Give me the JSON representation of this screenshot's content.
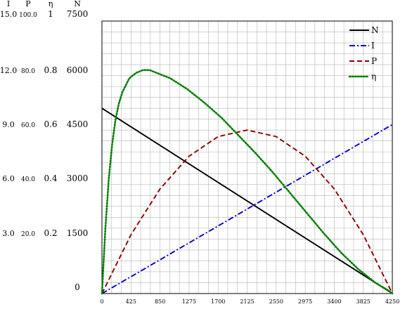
{
  "chart_data": {
    "type": "line",
    "xlabel": "",
    "xlim": [
      0,
      4250
    ],
    "x_ticks": [
      "0",
      "425",
      "850",
      "1275",
      "1700",
      "2125",
      "2550",
      "2975",
      "3400",
      "3825",
      "4250"
    ],
    "grid": true,
    "legend_position": "top-right",
    "axes": [
      {
        "key": "I",
        "header": "I",
        "range": [
          0,
          15
        ],
        "ticks": [
          "15.0",
          "12.0",
          "9.0",
          "6.0",
          "3.0"
        ]
      },
      {
        "key": "P",
        "header": "P",
        "range": [
          0,
          100
        ],
        "ticks": [
          "100.0",
          "80.0",
          "60.0",
          "40.0",
          "20.0"
        ]
      },
      {
        "key": "eta",
        "header": "η",
        "range": [
          0,
          1
        ],
        "ticks": [
          "1",
          "0.8",
          "0.6",
          "0.4",
          "0.2"
        ]
      },
      {
        "key": "N",
        "header": "N",
        "range": [
          0,
          7500
        ],
        "ticks": [
          "7500",
          "6000",
          "4500",
          "3000",
          "1500",
          "0"
        ]
      }
    ],
    "series": [
      {
        "name": "N",
        "axis": "N",
        "color": "#000000",
        "dash": "solid",
        "x": [
          0,
          4250
        ],
        "y": [
          5100,
          0
        ]
      },
      {
        "name": "I",
        "axis": "I",
        "color": "#0000cc",
        "dash": "dashdot",
        "x": [
          0,
          4250
        ],
        "y": [
          0,
          9.3
        ]
      },
      {
        "name": "P",
        "axis": "P",
        "color": "#8b0000",
        "dash": "dashed",
        "x": [
          0,
          425,
          850,
          1275,
          1700,
          2125,
          2550,
          2975,
          3400,
          3825,
          4250
        ],
        "y": [
          0,
          21.6,
          38.4,
          50.4,
          57.6,
          60.0,
          57.6,
          50.4,
          38.4,
          21.6,
          0
        ]
      },
      {
        "name": "η",
        "axis": "eta",
        "color": "#008000",
        "dash": "dotted",
        "x": [
          0,
          50,
          100,
          150,
          200,
          250,
          300,
          400,
          500,
          600,
          700,
          800,
          1000,
          1250,
          1500,
          1750,
          2000,
          2250,
          2500,
          2750,
          3000,
          3250,
          3500,
          3750,
          4000,
          4100,
          4200,
          4250
        ],
        "y": [
          0,
          0.24,
          0.42,
          0.55,
          0.64,
          0.7,
          0.74,
          0.79,
          0.81,
          0.82,
          0.82,
          0.81,
          0.79,
          0.75,
          0.7,
          0.645,
          0.58,
          0.515,
          0.445,
          0.37,
          0.295,
          0.22,
          0.15,
          0.09,
          0.04,
          0.025,
          0.01,
          0
        ]
      }
    ]
  }
}
